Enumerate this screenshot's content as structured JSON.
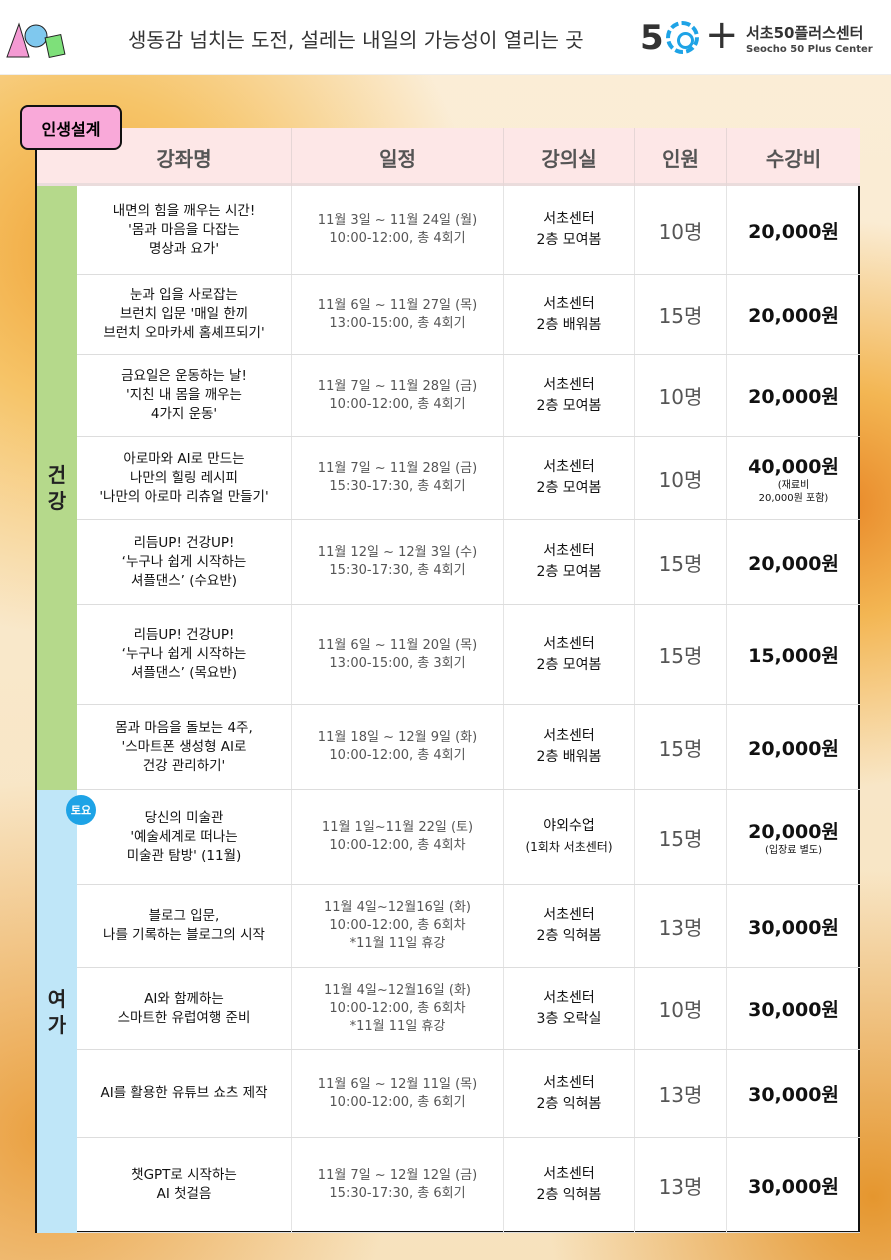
{
  "header": {
    "slogan": "생동감 넘치는 도전, 설레는 내일의 가능성이 열리는 곳",
    "brand_num": "5",
    "brand_plus": "+",
    "brand_ko": "서초50플러스센터",
    "brand_en": "Seocho 50 Plus Center",
    "logo": "A 50 ㅎ 5060 character logo"
  },
  "tag": "인생설계",
  "columns": [
    "강좌명",
    "일정",
    "강의실",
    "인원",
    "수강비"
  ],
  "categories": [
    {
      "label": "건\n강",
      "color": "#b5d98b"
    },
    {
      "label": "여\n가",
      "color": "#bfe6f8"
    }
  ],
  "saturday_badge": "토요",
  "rows": [
    {
      "name": "내면의 힘을 깨우는 시간!\n'몸과 마음을 다잡는\n명상과 요가'",
      "schedule": "11월 3일 ~ 11월 24일 (월)\n10:00-12:00, 총 4회기",
      "room": "서초센터\n2층 모여봄",
      "count": "10명",
      "fee": "20,000원"
    },
    {
      "name": "눈과 입을 사로잡는\n브런치 입문 '매일 한끼\n브런치 오마카세 홈셰프되기'",
      "schedule": "11월 6일 ~ 11월 27일 (목)\n13:00-15:00, 총 4회기",
      "room": "서초센터\n2층 배워봄",
      "count": "15명",
      "fee": "20,000원"
    },
    {
      "name": "금요일은 운동하는 날!\n'지친 내 몸을 깨우는\n4가지 운동'",
      "schedule": "11월 7일 ~ 11월 28일 (금)\n10:00-12:00, 총 4회기",
      "room": "서초센터\n2층 모여봄",
      "count": "10명",
      "fee": "20,000원"
    },
    {
      "name": "아로마와 AI로 만드는\n나만의 힐링 레시피\n'나만의 아로마 리츄얼 만들기'",
      "schedule": "11월 7일 ~ 11월 28일 (금)\n15:30-17:30, 총 4회기",
      "room": "서초센터\n2층 모여봄",
      "count": "10명",
      "fee": "40,000원",
      "fee_note": "(재료비\n20,000원 포함)"
    },
    {
      "name": "리듬UP! 건강UP!\n‘누구나 쉽게 시작하는\n셔플댄스’ (수요반)",
      "schedule": "11월 12일 ~ 12월 3일 (수)\n15:30-17:30, 총 4회기",
      "room": "서초센터\n2층 모여봄",
      "count": "15명",
      "fee": "20,000원"
    },
    {
      "name": "리듬UP! 건강UP!\n‘누구나 쉽게 시작하는\n셔플댄스’ (목요반)",
      "schedule": "11월 6일 ~ 11월 20일 (목)\n13:00-15:00, 총 3회기",
      "room": "서초센터\n2층 모여봄",
      "count": "15명",
      "fee": "15,000원"
    },
    {
      "name": "몸과 마음을 돌보는 4주,\n'스마트폰 생성형 AI로\n건강 관리하기'",
      "schedule": "11월 18일 ~ 12월 9일 (화)\n10:00-12:00, 총 4회기",
      "room": "서초센터\n2층 배워봄",
      "count": "15명",
      "fee": "20,000원"
    },
    {
      "name": "당신의 미술관\n'예술세계로 떠나는\n미술관 탐방' (11월)",
      "schedule": "11월 1일~11월 22일 (토)\n10:00-12:00, 총 4회차",
      "room": "야외수업",
      "room_note": "(1회차 서초센터)",
      "count": "15명",
      "fee": "20,000원",
      "fee_note": "(입장료 별도)"
    },
    {
      "name": "블로그 입문,\n나를 기록하는 블로그의 시작",
      "schedule": "11월 4일~12월16일 (화)\n10:00-12:00, 총 6회차\n*11월 11일 휴강",
      "room": "서초센터\n2층 익혀봄",
      "count": "13명",
      "fee": "30,000원"
    },
    {
      "name": "AI와 함께하는\n스마트한 유럽여행 준비",
      "schedule": "11월 4일~12월16일 (화)\n10:00-12:00, 총 6회차\n*11월 11일 휴강",
      "room": "서초센터\n3층 오락실",
      "count": "10명",
      "fee": "30,000원"
    },
    {
      "name": "AI를 활용한 유튜브 쇼츠 제작",
      "schedule": "11월 6일 ~ 12월 11일 (목)\n10:00-12:00, 총 6회기",
      "room": "서초센터\n2층 익혀봄",
      "count": "13명",
      "fee": "30,000원"
    },
    {
      "name": "챗GPT로 시작하는\nAI 첫걸음",
      "schedule": "11월 7일 ~ 12월 12일 (금)\n15:30-17:30, 총 6회기",
      "room": "서초센터\n2층 익혀봄",
      "count": "13명",
      "fee": "30,000원"
    }
  ]
}
